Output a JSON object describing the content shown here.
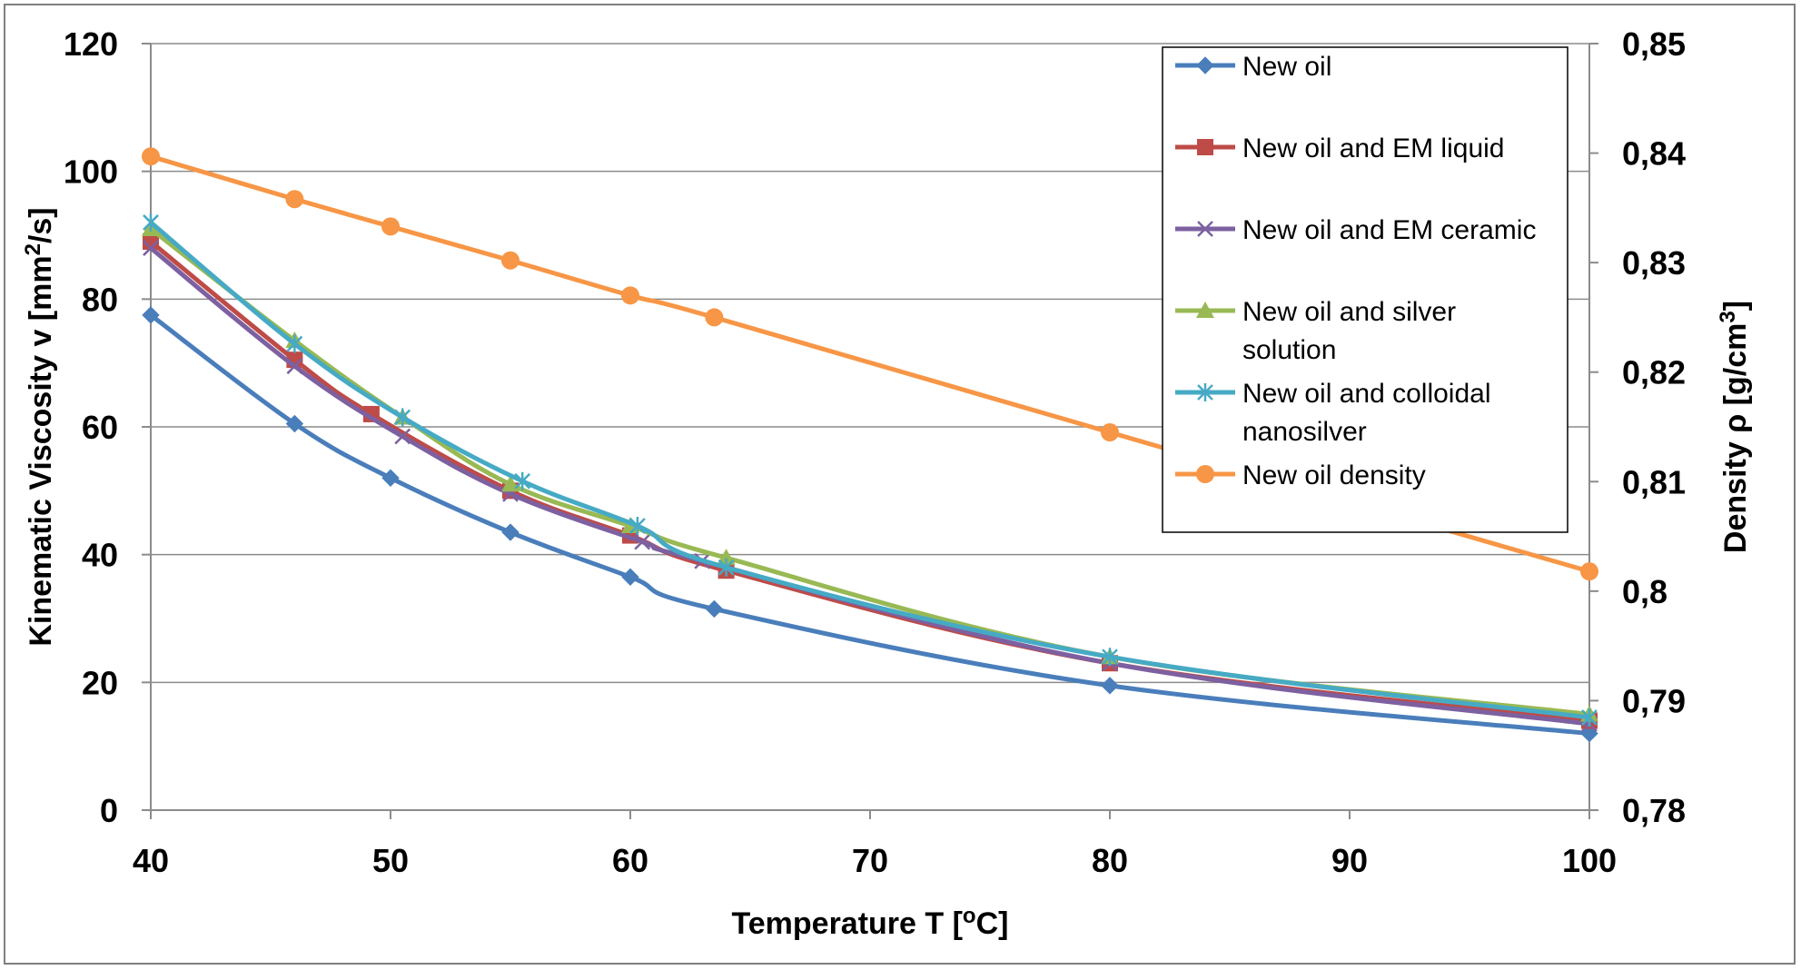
{
  "chart_data": {
    "type": "line",
    "xlabel": {
      "main": "Temperature T  [",
      "sup": "o",
      "tail": "C]"
    },
    "ylabel_left": {
      "main": "Kinematic Viscosity v [mm",
      "sup": "2",
      "tail": "/s]"
    },
    "ylabel_right": {
      "main": "Density ρ [g/cm",
      "sup": "3",
      "tail": "]"
    },
    "xlim": [
      40,
      100
    ],
    "ylim_left": [
      0,
      120
    ],
    "ylim_right": [
      0.78,
      0.85
    ],
    "x_ticks": [
      "40",
      "50",
      "60",
      "70",
      "80",
      "90",
      "100"
    ],
    "y_ticks_left": [
      "0",
      "20",
      "40",
      "60",
      "80",
      "100",
      "120"
    ],
    "y_ticks_right": [
      "0,78",
      "0,79",
      "0,8",
      "0,81",
      "0,82",
      "0,83",
      "0,84",
      "0,85"
    ],
    "grid": "horizontal",
    "legend_position": "top-right",
    "series": [
      {
        "name": "New oil",
        "axis": "left",
        "color": "#4a7ebb",
        "marker": "diamond",
        "x": [
          40,
          46,
          50,
          55,
          60,
          63.5,
          80,
          100
        ],
        "y": [
          77.5,
          60.5,
          52,
          43.5,
          36.5,
          31.5,
          19.5,
          12
        ]
      },
      {
        "name": "New oil and EM liquid",
        "axis": "left",
        "color": "#be4b48",
        "marker": "square",
        "x": [
          40,
          46,
          49.2,
          55,
          60,
          64,
          80,
          100
        ],
        "y": [
          89,
          70.5,
          62,
          50,
          43,
          37.5,
          23,
          14
        ]
      },
      {
        "name": "New oil and EM ceramic",
        "axis": "left",
        "color": "#7d60a0",
        "marker": "x",
        "x": [
          40,
          46,
          50.5,
          55,
          60.5,
          63,
          80,
          100
        ],
        "y": [
          88,
          69.5,
          58.5,
          49.5,
          42,
          39,
          23,
          13.5
        ]
      },
      {
        "name": "New oil and silver solution",
        "axis": "left",
        "color": "#98b954",
        "marker": "triangle",
        "x": [
          40,
          46,
          50.5,
          55,
          60,
          64,
          80,
          100
        ],
        "y": [
          91,
          73.5,
          61.5,
          51,
          44.5,
          39.5,
          24,
          15
        ]
      },
      {
        "name": "New oil and colloidal nanosilver",
        "axis": "left",
        "color": "#46aac5",
        "marker": "star",
        "x": [
          40,
          46,
          50.5,
          55.5,
          60.3,
          64,
          80,
          100
        ],
        "y": [
          92,
          73,
          61.5,
          51.5,
          44.5,
          38,
          24,
          14.5
        ]
      },
      {
        "name": "New oil density",
        "axis": "right",
        "color": "#f79646",
        "marker": "circle",
        "x": [
          40,
          46,
          50,
          55,
          60,
          63.5,
          80,
          100
        ],
        "y": [
          0.8397,
          0.8358,
          0.8333,
          0.8302,
          0.827,
          0.825,
          0.8145,
          0.8018
        ]
      }
    ],
    "legend_lines": [
      [
        "New oil"
      ],
      [
        "New oil and EM liquid"
      ],
      [
        "New oil and EM ceramic"
      ],
      [
        "New oil and silver",
        "solution"
      ],
      [
        "New oil and colloidal",
        "nanosilver"
      ],
      [
        "New oil density"
      ]
    ]
  }
}
